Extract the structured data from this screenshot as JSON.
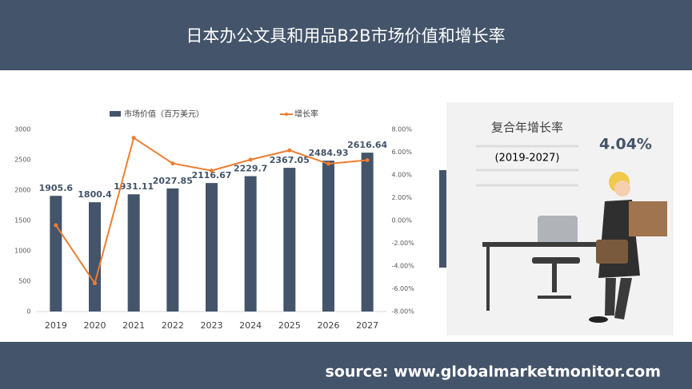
{
  "chart_data": {
    "type": "bar_line",
    "title": "日本办公文具和用品B2B市场价值和增长率",
    "categories": [
      "2019",
      "2020",
      "2021",
      "2022",
      "2023",
      "2024",
      "2025",
      "2026",
      "2027"
    ],
    "series": [
      {
        "name": "市场价值（百万美元）",
        "type": "bar",
        "color": "#44546a",
        "values": [
          1905.6,
          1800.4,
          1931.11,
          2027.85,
          2116.67,
          2229.7,
          2367.05,
          2484.93,
          2616.64
        ]
      },
      {
        "name": "增长率",
        "type": "line",
        "axis": "y2",
        "color": "#ed7d31",
        "values": [
          -0.42,
          -5.52,
          7.26,
          5.01,
          4.38,
          5.34,
          6.16,
          4.98,
          5.3
        ]
      }
    ],
    "ylim": [
      0,
      3000
    ],
    "yticks": [
      0,
      500,
      1000,
      1500,
      2000,
      2500,
      3000
    ],
    "y2lim": [
      -8,
      8
    ],
    "y2ticks": [
      {
        "value": -8,
        "label": "-8.00%"
      },
      {
        "value": -6,
        "label": "-6.00%"
      },
      {
        "value": -4,
        "label": "-4.00%"
      },
      {
        "value": -2,
        "label": "-2.00%"
      },
      {
        "value": 0,
        "label": "0.00%"
      },
      {
        "value": 2,
        "label": "2.00%"
      },
      {
        "value": 4,
        "label": "4.00%"
      },
      {
        "value": 6,
        "label": "6.00%"
      },
      {
        "value": 8,
        "label": "8.00%"
      }
    ],
    "legend": "top"
  },
  "panel": {
    "title": "复合年增长率",
    "period": "(2019-2027)",
    "value": "4.04%"
  },
  "source": "source: www.globalmarketmonitor.com"
}
